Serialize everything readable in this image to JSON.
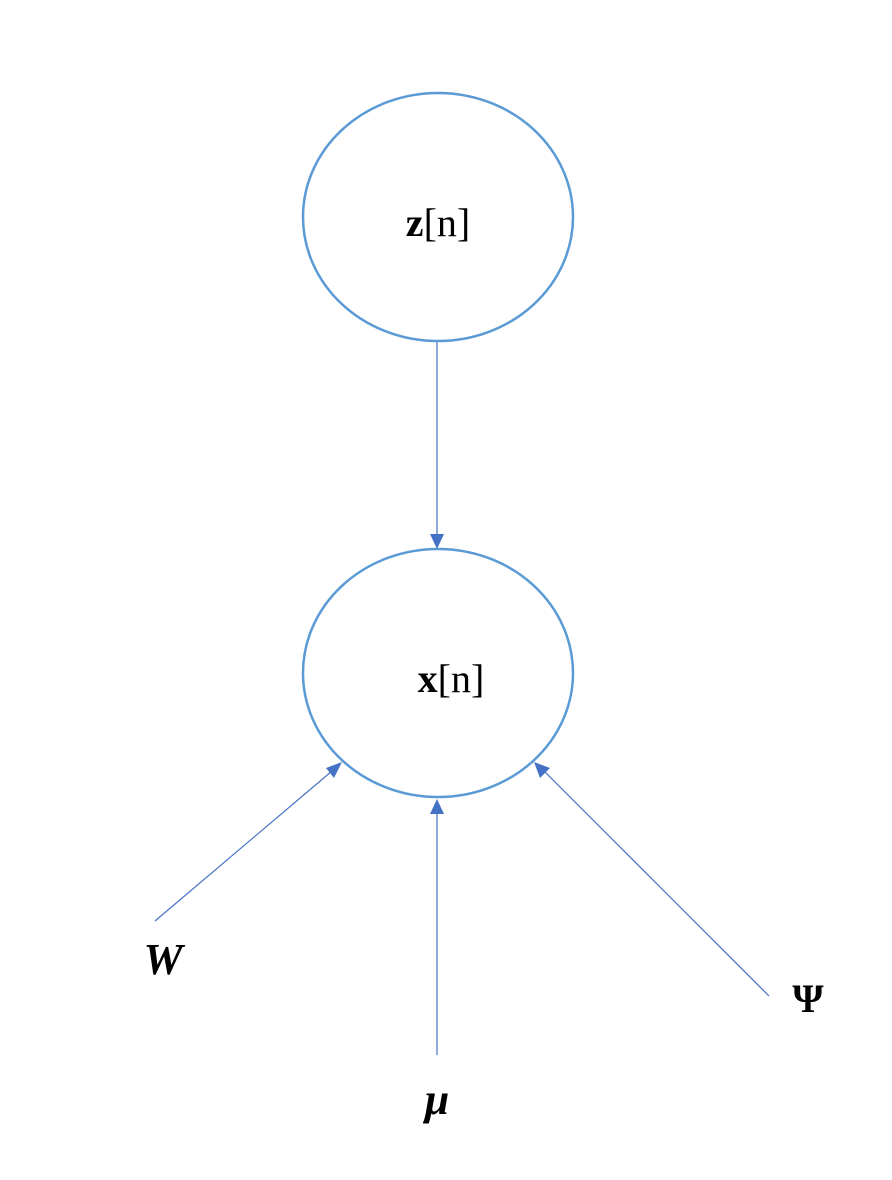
{
  "nodes": {
    "latent": {
      "bold": "z",
      "rest": "[n]",
      "name": "latent-node-z"
    },
    "observed": {
      "bold": "x",
      "rest": "[n]",
      "name": "observed-node-x"
    }
  },
  "parameters": {
    "W": "W",
    "mu": "μ",
    "psi": "Ψ"
  },
  "colors": {
    "node_stroke": "#5B9BD5",
    "edge": "#4472C4"
  }
}
